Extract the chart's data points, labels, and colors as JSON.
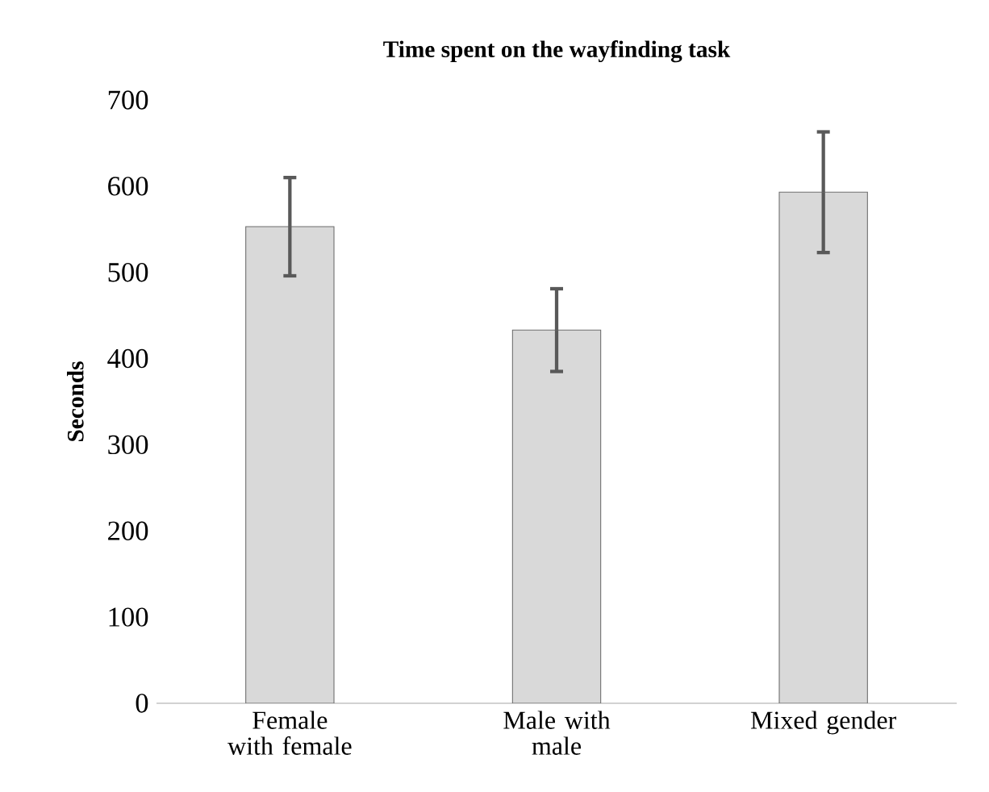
{
  "chart_data": {
    "type": "bar",
    "title": "Time spent on the wayfinding task",
    "ylabel": "Seconds",
    "categories": [
      "Female with female",
      "Male with male",
      "Mixed gender"
    ],
    "values": [
      553,
      433,
      593
    ],
    "errors": [
      57,
      48,
      70
    ],
    "color": "#d9d9d9",
    "ylim": [
      0,
      700
    ],
    "yticks": [
      0,
      100,
      200,
      300,
      400,
      500,
      600,
      700
    ]
  }
}
